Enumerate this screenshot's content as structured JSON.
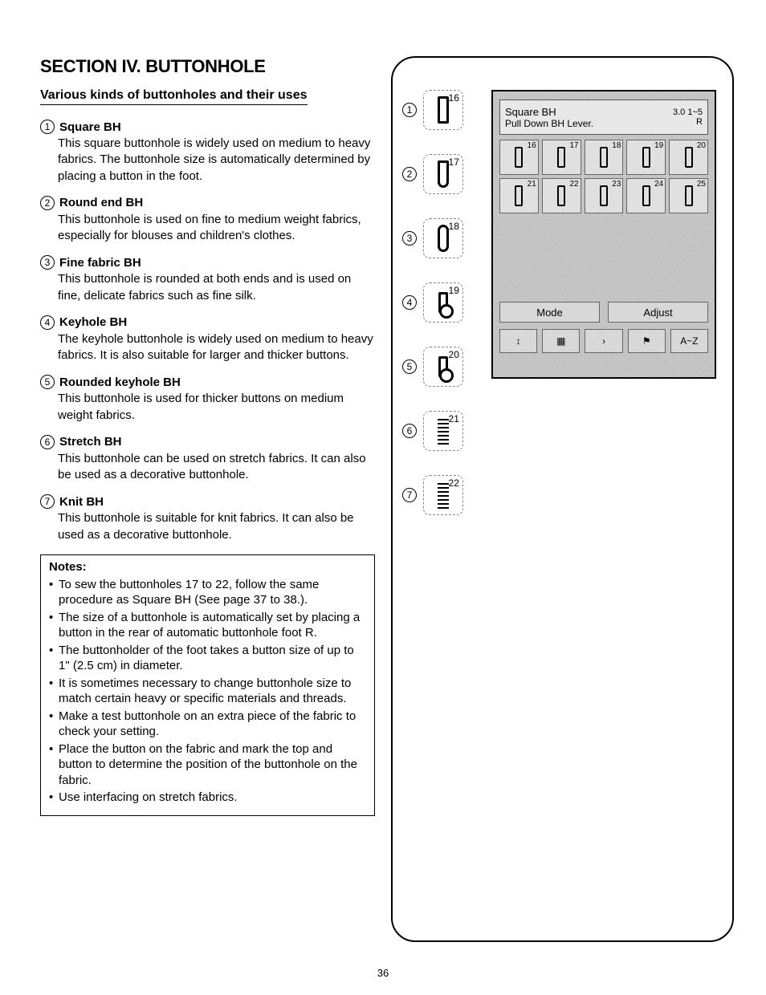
{
  "section_title": "SECTION IV. BUTTONHOLE",
  "subtitle": "Various kinds of buttonholes and their uses",
  "page_number": "36",
  "items": [
    {
      "num": "1",
      "title": "Square BH",
      "desc": "This square buttonhole is widely used on medium to heavy fabrics. The buttonhole size is automatically determined by placing a button in the foot."
    },
    {
      "num": "2",
      "title": "Round end BH",
      "desc": "This buttonhole is used on fine to medium weight fabrics, especially for blouses and children's clothes."
    },
    {
      "num": "3",
      "title": "Fine fabric BH",
      "desc": "This buttonhole is rounded at both ends and is used on fine, delicate fabrics such as fine silk."
    },
    {
      "num": "4",
      "title": "Keyhole BH",
      "desc": "The keyhole buttonhole is widely used on medium to heavy fabrics. It is also suitable for larger and thicker buttons."
    },
    {
      "num": "5",
      "title": "Rounded keyhole BH",
      "desc": "This buttonhole is used for thicker buttons on medium weight fabrics."
    },
    {
      "num": "6",
      "title": "Stretch BH",
      "desc": "This buttonhole can be used on stretch fabrics. It can also be used as a decorative buttonhole."
    },
    {
      "num": "7",
      "title": "Knit BH",
      "desc": "This buttonhole is suitable for knit fabrics. It can also be used as a decorative buttonhole."
    }
  ],
  "notes": {
    "title": "Notes:",
    "bullets": [
      "To sew the buttonholes 17 to 22, follow the same procedure as Square BH (See page 37 to 38.).",
      "The size of a buttonhole is automatically set by placing a button in the rear of automatic buttonhole foot R.",
      "The buttonholder of the foot takes a button size of up to 1\" (2.5 cm) in diameter.",
      "It is sometimes necessary to change buttonhole size to match certain heavy or specific materials and threads.",
      "Make a test buttonhole on an extra piece of the fabric to check your setting.",
      "Place the button on the fabric and mark the top and button to determine the position of the buttonhole on the fabric.",
      "Use interfacing on stretch fabrics."
    ]
  },
  "refs": [
    {
      "num": "1",
      "label": "16"
    },
    {
      "num": "2",
      "label": "17"
    },
    {
      "num": "3",
      "label": "18"
    },
    {
      "num": "4",
      "label": "19"
    },
    {
      "num": "5",
      "label": "20"
    },
    {
      "num": "6",
      "label": "21"
    },
    {
      "num": "7",
      "label": "22"
    }
  ],
  "screen": {
    "title": "Square BH",
    "hint": "Pull Down BH Lever.",
    "param1": "3.0",
    "param2": "1~5",
    "foot": "R",
    "grid_nums": [
      "16",
      "17",
      "18",
      "19",
      "20",
      "21",
      "22",
      "23",
      "24",
      "25"
    ],
    "mode": "Mode",
    "adjust": "Adjust",
    "az": "A~Z"
  },
  "colors": {
    "text": "#000000",
    "bg": "#ffffff",
    "panel_bg": "#c8c8c8",
    "panel_cell": "#e0e0e0",
    "border": "#000000"
  }
}
